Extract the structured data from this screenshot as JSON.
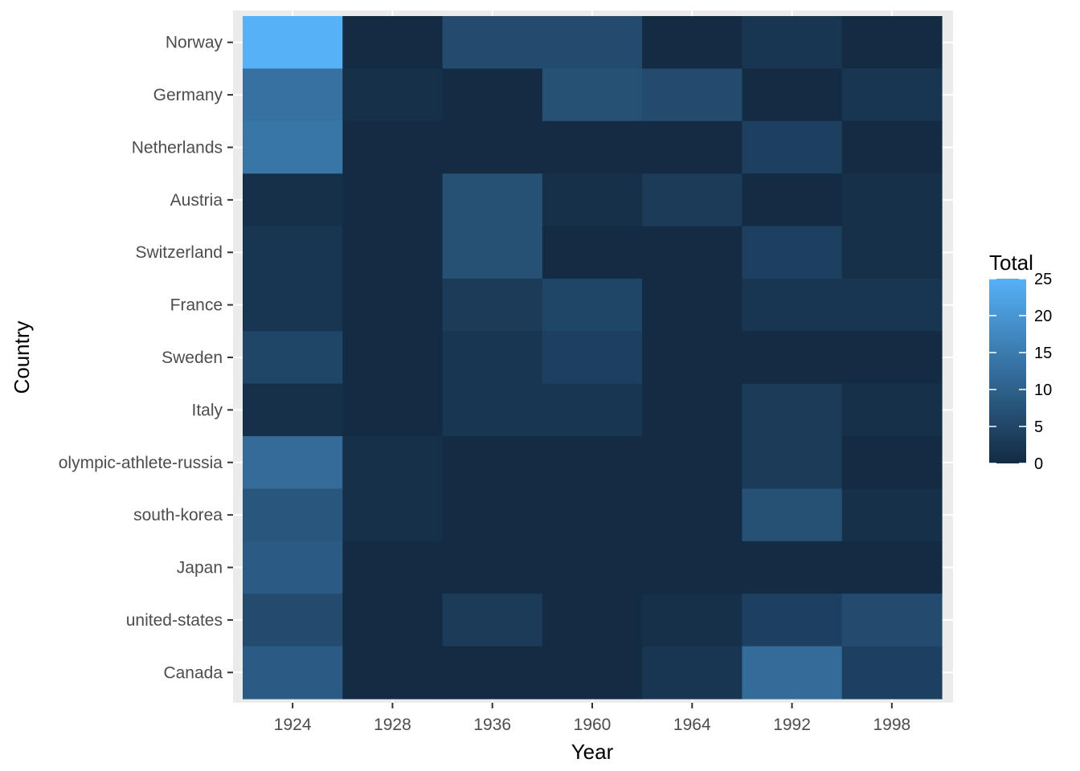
{
  "chart_data": {
    "type": "heatmap",
    "xlabel": "Year",
    "ylabel": "Country",
    "x_categories": [
      "1924",
      "1928",
      "1936",
      "1960",
      "1964",
      "1992",
      "1998"
    ],
    "y_categories": [
      "Norway",
      "Germany",
      "Netherlands",
      "Austria",
      "Switzerland",
      "France",
      "Sweden",
      "Italy",
      "olympic-athlete-russia",
      "south-korea",
      "Japan",
      "united-states",
      "Canada"
    ],
    "values": [
      [
        25,
        0,
        6,
        6,
        0,
        2,
        0
      ],
      [
        13,
        1,
        0,
        7,
        6,
        0,
        2
      ],
      [
        14,
        0,
        0,
        0,
        0,
        4,
        0
      ],
      [
        1,
        0,
        7,
        1,
        3,
        0,
        1
      ],
      [
        2,
        0,
        7,
        0,
        0,
        4,
        1
      ],
      [
        2,
        0,
        3,
        5,
        0,
        2,
        2
      ],
      [
        5,
        0,
        2,
        4,
        0,
        0,
        0
      ],
      [
        1,
        0,
        2,
        2,
        0,
        3,
        1
      ],
      [
        12,
        1,
        0,
        0,
        0,
        3,
        0
      ],
      [
        8,
        1,
        0,
        0,
        0,
        7,
        1
      ],
      [
        9,
        0,
        0,
        0,
        0,
        0,
        0
      ],
      [
        6,
        0,
        3,
        0,
        1,
        4,
        6
      ],
      [
        9,
        0,
        0,
        0,
        2,
        12,
        4
      ]
    ],
    "legend": {
      "title": "Total",
      "breaks": [
        25,
        20,
        15,
        10,
        5,
        0
      ],
      "range": [
        0,
        25
      ],
      "placement": "right"
    },
    "colors": {
      "low": "#132B43",
      "high": "#56B1F7",
      "panel_background": "#EBEBEB",
      "grid_line": "#FFFFFF",
      "tick_text": "#4D4D4D",
      "tick_mark": "#333333"
    }
  }
}
